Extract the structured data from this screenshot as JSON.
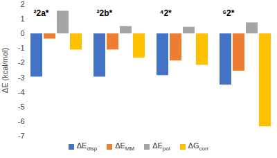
{
  "chart_data": {
    "type": "bar",
    "categories": [
      "²2a*",
      "²2b*",
      "⁴2*",
      "⁶2*"
    ],
    "series": [
      {
        "name": "ΔEdisp",
        "color": "#4472c4",
        "values": [
          -2.95,
          -2.95,
          -2.85,
          -3.5
        ]
      },
      {
        "name": "ΔEMM",
        "color": "#ed7d31",
        "values": [
          -0.35,
          -1.1,
          -1.85,
          -2.55
        ]
      },
      {
        "name": "ΔEpol",
        "color": "#a5a5a5",
        "values": [
          1.55,
          0.5,
          0.45,
          0.75
        ]
      },
      {
        "name": "ΔGcorr",
        "color": "#ffc000",
        "values": [
          -1.1,
          -1.65,
          -2.15,
          -6.35
        ]
      }
    ],
    "y_label": "ΔE (kcal/mol)",
    "ylim": [
      -7,
      2
    ],
    "yticks": [
      -7,
      -6,
      -5,
      -4,
      -3,
      -2,
      -1,
      0,
      1,
      2
    ],
    "grid": false,
    "legend": "bottom",
    "tick_labels": "y"
  }
}
